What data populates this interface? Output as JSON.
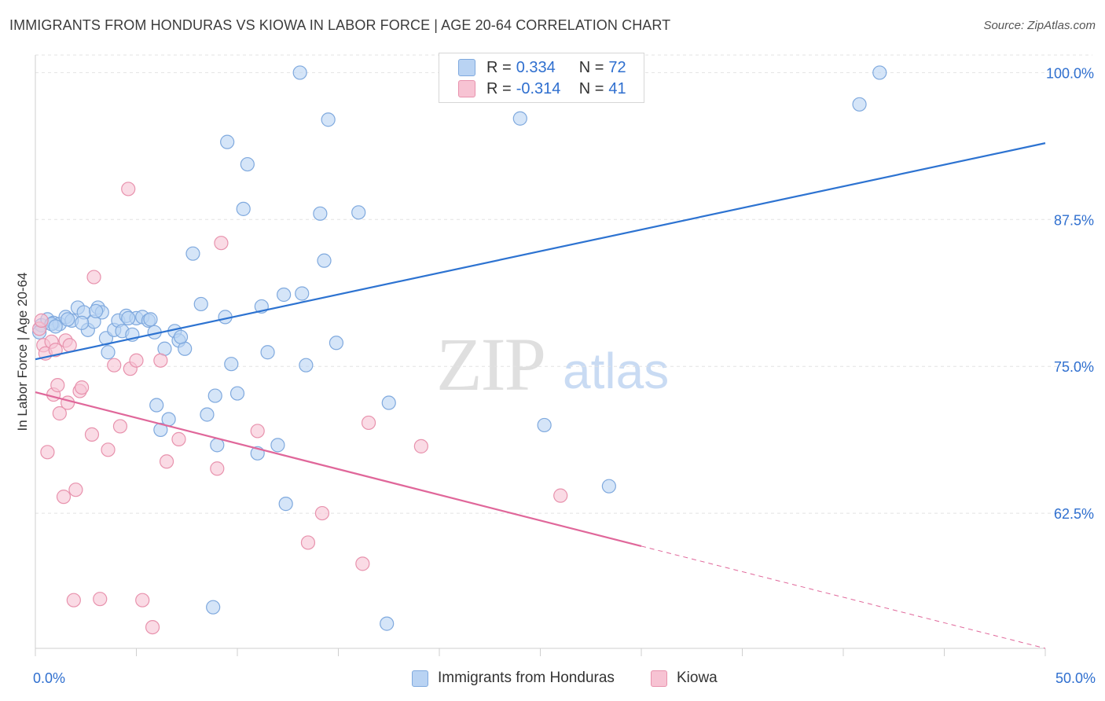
{
  "title": "IMMIGRANTS FROM HONDURAS VS KIOWA IN LABOR FORCE | AGE 20-64 CORRELATION CHART",
  "source": "Source: ZipAtlas.com",
  "watermark": {
    "zip": "ZIP",
    "atlas": "atlas"
  },
  "legend": {
    "series1": {
      "r_label": "R =",
      "r_value": "0.334",
      "n_label": "N =",
      "n_value": "72"
    },
    "series2": {
      "r_label": "R =",
      "r_value": "-0.314",
      "n_label": "N =",
      "n_value": "41"
    }
  },
  "colors": {
    "blue_fill": "#b9d3f3",
    "blue_stroke": "#7fa9de",
    "blue_line": "#2d73d1",
    "pink_fill": "#f7c3d3",
    "pink_stroke": "#e892ad",
    "pink_line": "#e0679a",
    "grid": "#e3e3e3",
    "axis_text": "#2f6fcf"
  },
  "chart_data": {
    "type": "scatter",
    "title": "IMMIGRANTS FROM HONDURAS VS KIOWA IN LABOR FORCE | AGE 20-64 CORRELATION CHART",
    "xlabel": "",
    "ylabel": "In Labor Force | Age 20-64",
    "xlim": [
      0,
      50
    ],
    "ylim": [
      51,
      101.5
    ],
    "x_tick_labels": [
      "0.0%",
      "50.0%"
    ],
    "y_ticks": [
      62.5,
      75.0,
      87.5,
      100.0
    ],
    "y_tick_labels": [
      "62.5%",
      "75.0%",
      "87.5%",
      "100.0%"
    ],
    "series": [
      {
        "name": "Immigrants from Honduras",
        "points": [
          [
            0.3,
            78.5
          ],
          [
            0.6,
            79.0
          ],
          [
            0.9,
            78.7
          ],
          [
            1.2,
            78.6
          ],
          [
            1.5,
            79.2
          ],
          [
            1.8,
            78.9
          ],
          [
            2.1,
            80.0
          ],
          [
            2.4,
            79.6
          ],
          [
            2.6,
            78.1
          ],
          [
            2.9,
            78.8
          ],
          [
            3.1,
            80.0
          ],
          [
            3.3,
            79.6
          ],
          [
            3.5,
            77.4
          ],
          [
            3.6,
            76.2
          ],
          [
            3.9,
            78.1
          ],
          [
            4.1,
            78.9
          ],
          [
            4.3,
            78.0
          ],
          [
            4.5,
            79.3
          ],
          [
            4.8,
            77.7
          ],
          [
            5.0,
            79.1
          ],
          [
            5.3,
            79.2
          ],
          [
            5.6,
            78.9
          ],
          [
            5.9,
            77.9
          ],
          [
            6.0,
            71.7
          ],
          [
            6.2,
            69.6
          ],
          [
            6.4,
            76.5
          ],
          [
            6.6,
            70.5
          ],
          [
            6.9,
            78.0
          ],
          [
            7.1,
            77.2
          ],
          [
            7.4,
            76.5
          ],
          [
            7.8,
            84.6
          ],
          [
            8.2,
            80.3
          ],
          [
            8.5,
            70.9
          ],
          [
            8.8,
            54.5
          ],
          [
            8.9,
            72.5
          ],
          [
            9.0,
            68.3
          ],
          [
            9.4,
            79.2
          ],
          [
            9.5,
            94.1
          ],
          [
            9.7,
            75.2
          ],
          [
            10.0,
            72.7
          ],
          [
            10.3,
            88.4
          ],
          [
            10.5,
            92.2
          ],
          [
            11.0,
            67.6
          ],
          [
            11.2,
            80.1
          ],
          [
            11.5,
            76.2
          ],
          [
            12.0,
            68.3
          ],
          [
            12.3,
            81.1
          ],
          [
            12.4,
            63.3
          ],
          [
            13.1,
            100.0
          ],
          [
            13.2,
            81.2
          ],
          [
            13.4,
            75.1
          ],
          [
            14.1,
            88.0
          ],
          [
            14.3,
            84.0
          ],
          [
            14.5,
            96.0
          ],
          [
            14.9,
            77.0
          ],
          [
            16.0,
            88.1
          ],
          [
            17.4,
            53.1
          ],
          [
            17.5,
            71.9
          ],
          [
            24.0,
            96.1
          ],
          [
            25.2,
            70.0
          ],
          [
            28.4,
            64.8
          ],
          [
            40.8,
            97.3
          ],
          [
            41.8,
            100.0
          ],
          [
            0.2,
            77.9
          ],
          [
            0.8,
            78.6
          ],
          [
            1.0,
            78.4
          ],
          [
            2.3,
            78.7
          ],
          [
            5.7,
            79.0
          ],
          [
            7.2,
            77.5
          ],
          [
            3.0,
            79.7
          ],
          [
            4.6,
            79.1
          ],
          [
            1.6,
            79.0
          ]
        ]
      },
      {
        "name": "Kiowa",
        "points": [
          [
            0.2,
            78.2
          ],
          [
            0.4,
            76.8
          ],
          [
            0.5,
            76.1
          ],
          [
            0.6,
            67.7
          ],
          [
            0.8,
            77.1
          ],
          [
            0.9,
            72.6
          ],
          [
            1.0,
            76.4
          ],
          [
            1.1,
            73.4
          ],
          [
            1.2,
            71.0
          ],
          [
            1.4,
            63.9
          ],
          [
            1.5,
            77.2
          ],
          [
            1.6,
            71.9
          ],
          [
            1.7,
            76.8
          ],
          [
            1.9,
            55.1
          ],
          [
            2.0,
            64.5
          ],
          [
            2.2,
            72.9
          ],
          [
            2.3,
            73.2
          ],
          [
            2.8,
            69.2
          ],
          [
            2.9,
            82.6
          ],
          [
            3.2,
            55.2
          ],
          [
            3.6,
            67.9
          ],
          [
            3.9,
            75.1
          ],
          [
            4.2,
            69.9
          ],
          [
            4.6,
            90.1
          ],
          [
            4.7,
            74.8
          ],
          [
            5.0,
            75.5
          ],
          [
            5.3,
            55.1
          ],
          [
            5.8,
            52.8
          ],
          [
            6.2,
            75.5
          ],
          [
            6.5,
            66.9
          ],
          [
            7.1,
            68.8
          ],
          [
            9.0,
            66.3
          ],
          [
            9.2,
            85.5
          ],
          [
            11.0,
            69.5
          ],
          [
            13.5,
            60.0
          ],
          [
            14.2,
            62.5
          ],
          [
            16.2,
            58.2
          ],
          [
            16.5,
            70.2
          ],
          [
            19.1,
            68.2
          ],
          [
            26.0,
            64.0
          ],
          [
            0.3,
            78.9
          ]
        ]
      }
    ],
    "trendlines": [
      {
        "series": "Immigrants from Honduras",
        "x": [
          0,
          50
        ],
        "y": [
          75.6,
          94.0
        ],
        "style": "solid"
      },
      {
        "series": "Kiowa",
        "x": [
          0,
          30
        ],
        "y": [
          72.8,
          59.7
        ],
        "style": "solid"
      },
      {
        "series": "Kiowa",
        "x": [
          30,
          50
        ],
        "y": [
          59.7,
          51.0
        ],
        "style": "dashed"
      }
    ]
  },
  "bottom_legend": {
    "item1": "Immigrants from Honduras",
    "item2": "Kiowa"
  }
}
